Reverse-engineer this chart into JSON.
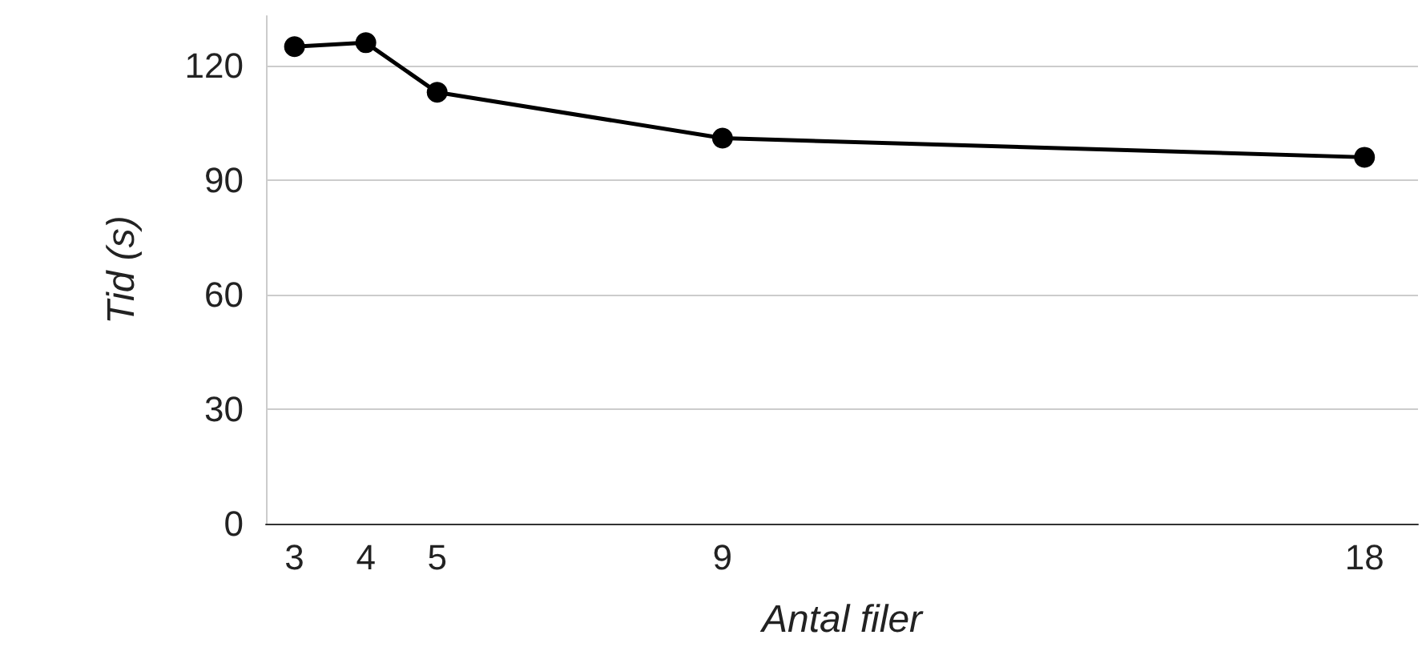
{
  "chart_data": {
    "type": "line",
    "xlabel": "Antal filer",
    "ylabel": "Tid (s)",
    "x": [
      3,
      4,
      5,
      9,
      18
    ],
    "series": [
      {
        "color": "#000000",
        "values": [
          125,
          126,
          113,
          101,
          96
        ]
      }
    ],
    "xlim": [
      2.6,
      18.75
    ],
    "xticks": [
      3,
      4,
      5,
      9,
      18
    ],
    "ylim": [
      0,
      133
    ],
    "yticks": [
      0,
      30,
      60,
      90,
      120
    ],
    "grid": "y",
    "marker": "circle",
    "line_style": "solid"
  }
}
